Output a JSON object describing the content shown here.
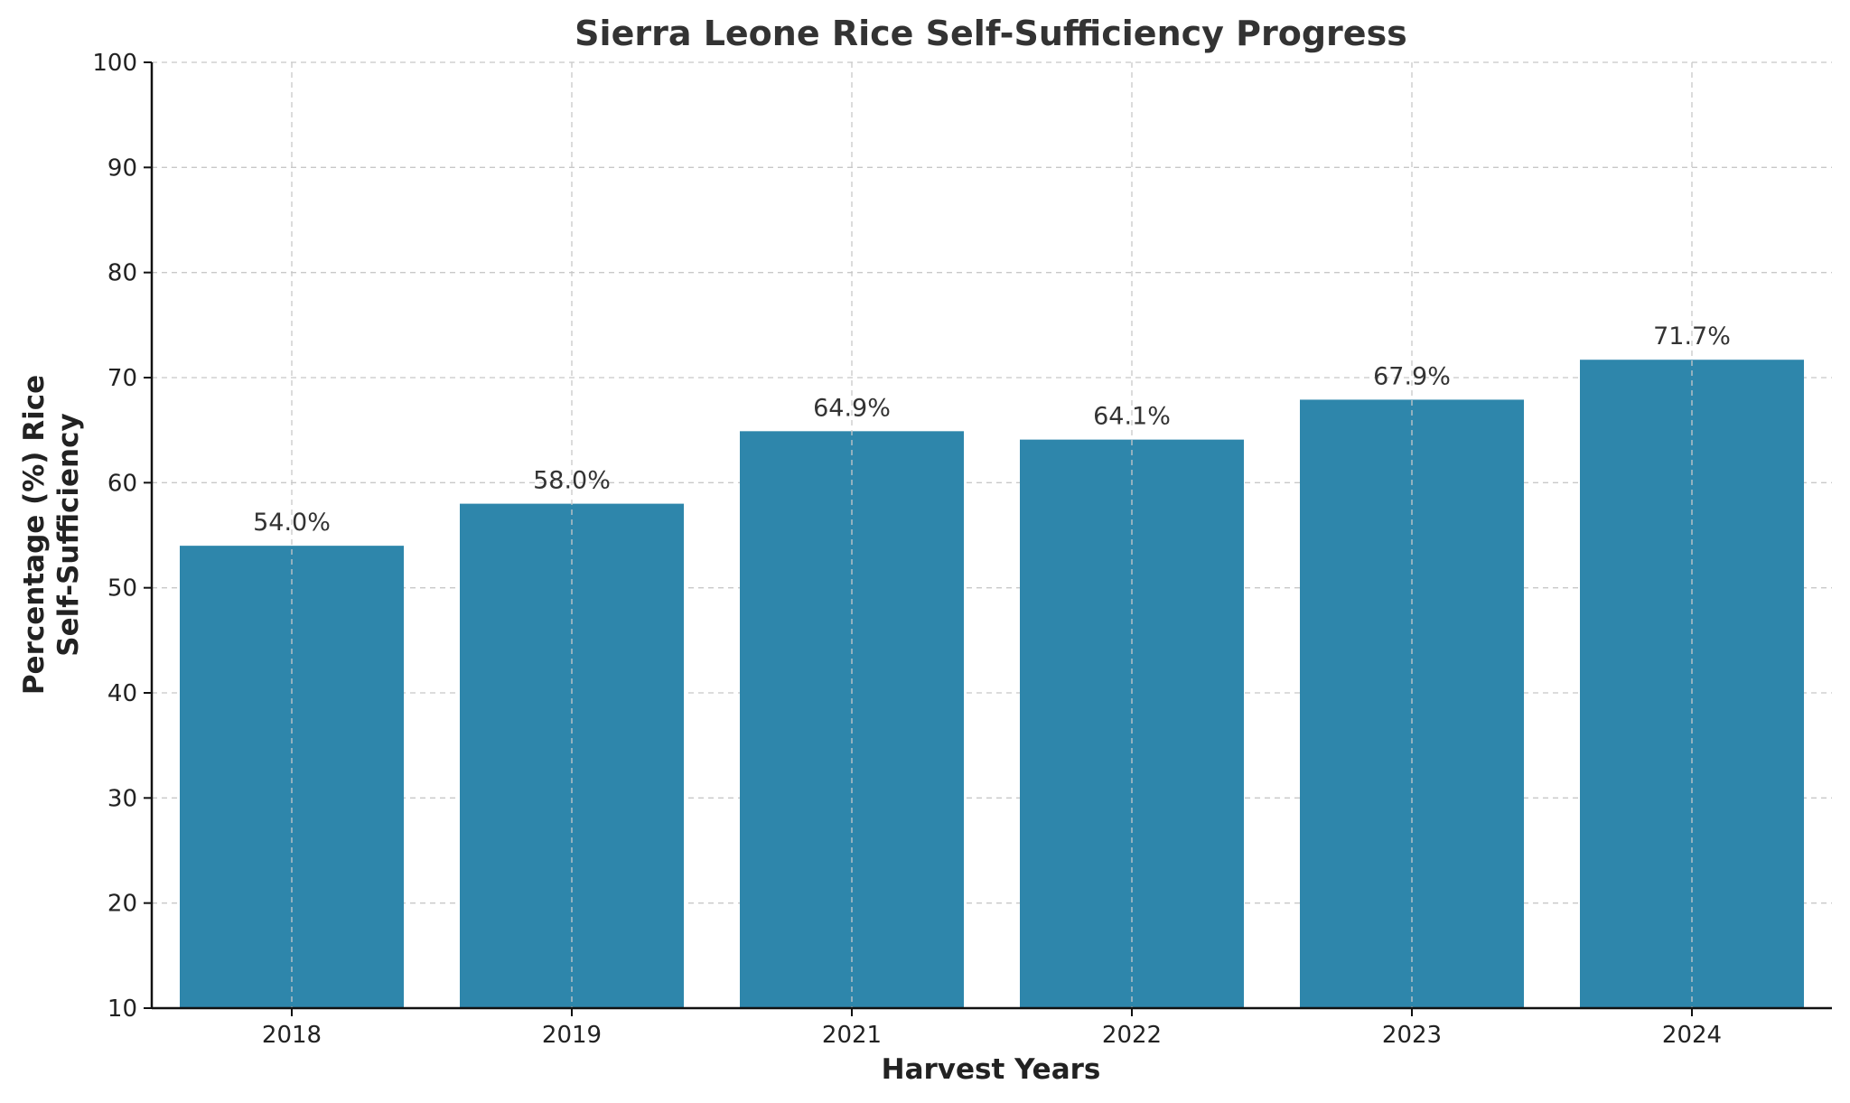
{
  "chart_data": {
    "type": "bar",
    "title": "Sierra Leone Rice Self-Sufficiency Progress",
    "xlabel": "Harvest Years",
    "ylabel": [
      "Percentage (%) Rice",
      "Self-Sufficiency"
    ],
    "categories": [
      "2018",
      "2019",
      "2021",
      "2022",
      "2023",
      "2024"
    ],
    "values": [
      54.0,
      58.0,
      64.9,
      64.1,
      67.9,
      71.7
    ],
    "data_labels": [
      "54.0%",
      "58.0%",
      "64.9%",
      "64.1%",
      "67.9%",
      "71.7%"
    ],
    "ylim": [
      10,
      100
    ],
    "yticks": [
      10,
      20,
      30,
      40,
      50,
      60,
      70,
      80,
      90,
      100
    ],
    "grid": true,
    "bar_color": "#2e86ab"
  }
}
